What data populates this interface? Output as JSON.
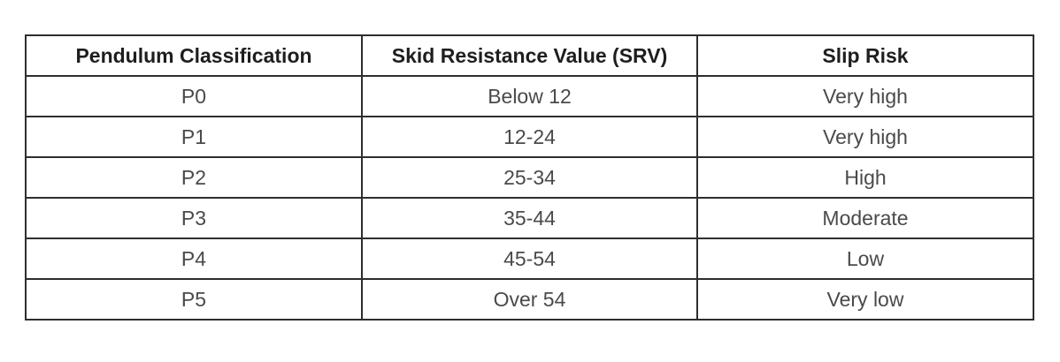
{
  "table": {
    "headers": [
      "Pendulum Classification",
      "Skid Resistance Value (SRV)",
      "Slip Risk"
    ],
    "rows": [
      [
        "P0",
        "Below 12",
        "Very high"
      ],
      [
        "P1",
        "12-24",
        "Very high"
      ],
      [
        "P2",
        "25-34",
        "High"
      ],
      [
        "P3",
        "35-44",
        "Moderate"
      ],
      [
        "P4",
        "45-54",
        "Low"
      ],
      [
        "P5",
        "Over 54",
        "Very low"
      ]
    ]
  }
}
